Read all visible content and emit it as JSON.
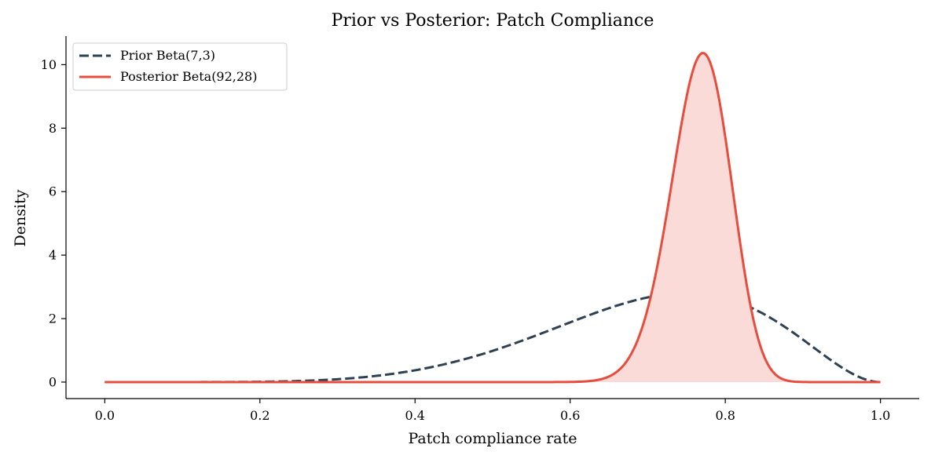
{
  "chart_data": {
    "type": "line",
    "title": "Prior vs Posterior: Patch Compliance",
    "xlabel": "Patch compliance rate",
    "ylabel": "Density",
    "xlim": [
      -0.05,
      1.05
    ],
    "ylim": [
      -0.52,
      10.9
    ],
    "x_ticks": [
      0.0,
      0.2,
      0.4,
      0.6,
      0.8,
      1.0
    ],
    "x_tick_labels": [
      "0.0",
      "0.2",
      "0.4",
      "0.6",
      "0.8",
      "1.0"
    ],
    "y_ticks": [
      0,
      2,
      4,
      6,
      8,
      10
    ],
    "y_tick_labels": [
      "0",
      "2",
      "4",
      "6",
      "8",
      "10"
    ],
    "grid": false,
    "legend_position": "top-left",
    "series": [
      {
        "name": "Prior Beta(7,3)",
        "style": "dashed",
        "color": "#2e4053",
        "alpha": 7,
        "beta": 3,
        "x": [
          0.0,
          0.1,
          0.2,
          0.3,
          0.4,
          0.5,
          0.55,
          0.6,
          0.65,
          0.7,
          0.75,
          0.8,
          0.85,
          0.9,
          0.95,
          1.0
        ],
        "values": [
          0.0,
          0.0004,
          0.0165,
          0.1286,
          0.4424,
          0.8789,
          1.22,
          1.5676,
          1.9,
          2.1352,
          2.4908,
          2.5166,
          2.3525,
          1.7006,
          0.8582,
          0.0
        ]
      },
      {
        "name": "Posterior Beta(92,28)",
        "style": "solid",
        "color": "#e74c3c",
        "fill_color": "#fadbd8",
        "alpha": 92,
        "beta": 28,
        "x": [
          0.6,
          0.65,
          0.7,
          0.72,
          0.74,
          0.76,
          0.77,
          0.78,
          0.8,
          0.82,
          0.84,
          0.86,
          0.9
        ],
        "values": [
          0.02,
          0.25,
          2.45,
          4.8,
          7.95,
          9.95,
          10.35,
          9.95,
          7.45,
          3.7,
          1.05,
          0.18,
          0.0
        ]
      }
    ]
  }
}
